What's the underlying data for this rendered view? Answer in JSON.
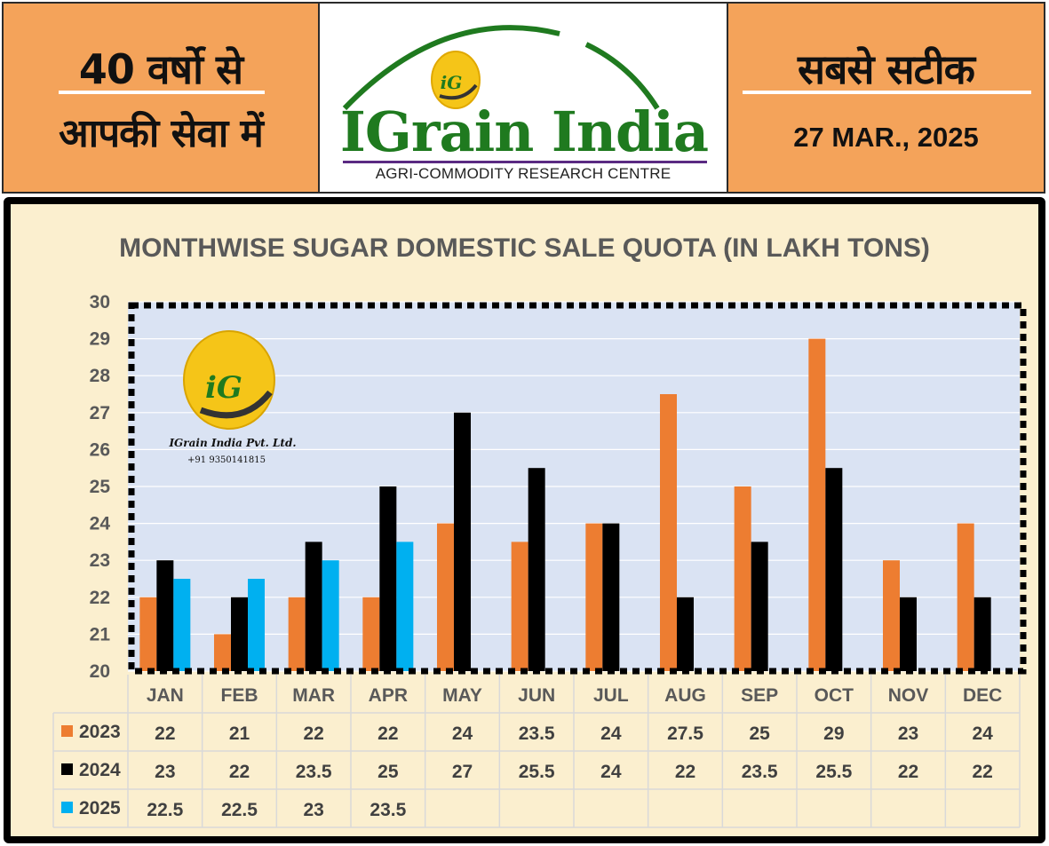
{
  "header": {
    "left_line1": "40 वर्षो से",
    "left_line2": "आपकी सेवा में",
    "right_line1": "सबसे सटीक",
    "right_date": "27 MAR., 2025",
    "brand": "IGrain India",
    "brand_subtitle": "AGRI-COMMODITY RESEARCH CENTRE",
    "logo_badge": "iG"
  },
  "watermark": {
    "badge": "iG",
    "company": "IGrain India Pvt. Ltd.",
    "phone": "+91 9350141815"
  },
  "colors": {
    "2023": "#ED7D31",
    "2024": "#000000",
    "2025": "#00B0F0",
    "header_bg": "#F4A35A",
    "brand_green": "#1f7a1f",
    "panel_bg": "#FBEFCF",
    "plot_bg": "#DAE3F3"
  },
  "chart_data": {
    "type": "bar",
    "title": "MONTHWISE SUGAR DOMESTIC SALE QUOTA (IN LAKH TONS)",
    "categories": [
      "JAN",
      "FEB",
      "MAR",
      "APR",
      "MAY",
      "JUN",
      "JUL",
      "AUG",
      "SEP",
      "OCT",
      "NOV",
      "DEC"
    ],
    "series": [
      {
        "name": "2023",
        "values": [
          22,
          21,
          22,
          22,
          24,
          23.5,
          24,
          27.5,
          25,
          29,
          23,
          24
        ]
      },
      {
        "name": "2024",
        "values": [
          23,
          22,
          23.5,
          25,
          27,
          25.5,
          24,
          22,
          23.5,
          25.5,
          22,
          22
        ]
      },
      {
        "name": "2025",
        "values": [
          22.5,
          22.5,
          23,
          23.5,
          null,
          null,
          null,
          null,
          null,
          null,
          null,
          null
        ]
      }
    ],
    "ylim": [
      20,
      30
    ],
    "yticks": [
      20,
      21,
      22,
      23,
      24,
      25,
      26,
      27,
      28,
      29,
      30
    ],
    "grid": true,
    "legend": "data-table"
  }
}
